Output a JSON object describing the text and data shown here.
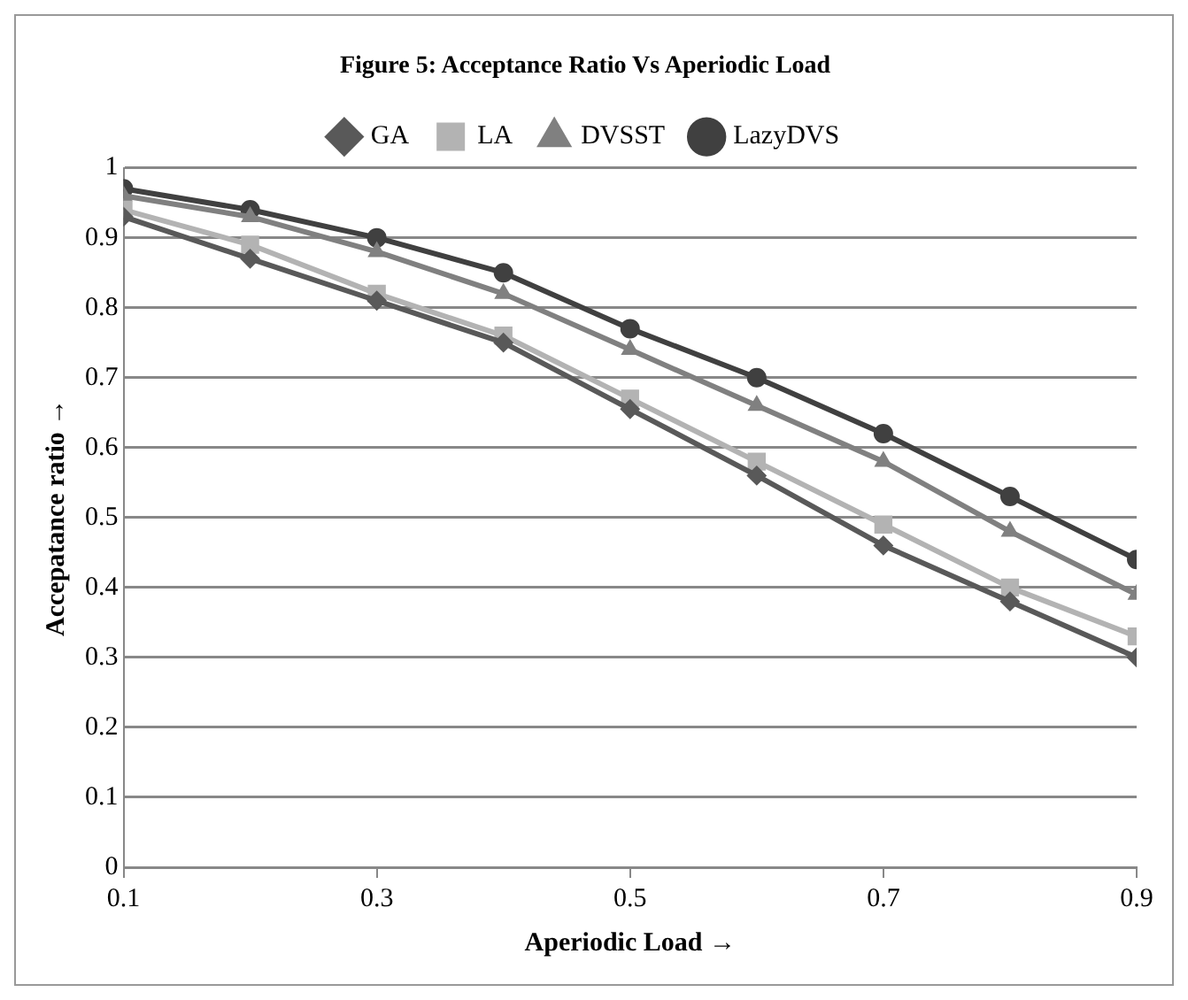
{
  "chart_data": {
    "type": "line",
    "title": "Figure 5: Acceptance Ratio Vs Aperiodic Load",
    "xlabel": "Aperiodic Load →",
    "ylabel": "Accepatance ratio →",
    "x": [
      0.1,
      0.2,
      0.3,
      0.4,
      0.5,
      0.6,
      0.7,
      0.8,
      0.9
    ],
    "series": [
      {
        "name": "GA",
        "color": "#595959",
        "marker": "diamond",
        "values": [
          0.93,
          0.87,
          0.81,
          0.75,
          0.655,
          0.56,
          0.46,
          0.38,
          0.3
        ]
      },
      {
        "name": "LA",
        "color": "#b3b3b3",
        "marker": "square",
        "values": [
          0.94,
          0.89,
          0.82,
          0.76,
          0.67,
          0.58,
          0.49,
          0.4,
          0.33
        ]
      },
      {
        "name": "DVSST",
        "color": "#808080",
        "marker": "triangle",
        "values": [
          0.96,
          0.93,
          0.88,
          0.82,
          0.74,
          0.66,
          0.58,
          0.48,
          0.39
        ]
      },
      {
        "name": "LazyDVS",
        "color": "#404040",
        "marker": "circle",
        "values": [
          0.97,
          0.94,
          0.9,
          0.85,
          0.77,
          0.7,
          0.62,
          0.53,
          0.44
        ]
      }
    ],
    "xlim": [
      0.1,
      0.9
    ],
    "xticks": [
      0.1,
      0.3,
      0.5,
      0.7,
      0.9
    ],
    "ylim": [
      0,
      1
    ],
    "yticks": [
      0,
      0.1,
      0.2,
      0.3,
      0.4,
      0.5,
      0.6,
      0.7,
      0.8,
      0.9,
      1
    ],
    "grid": "y",
    "legend": "top"
  }
}
